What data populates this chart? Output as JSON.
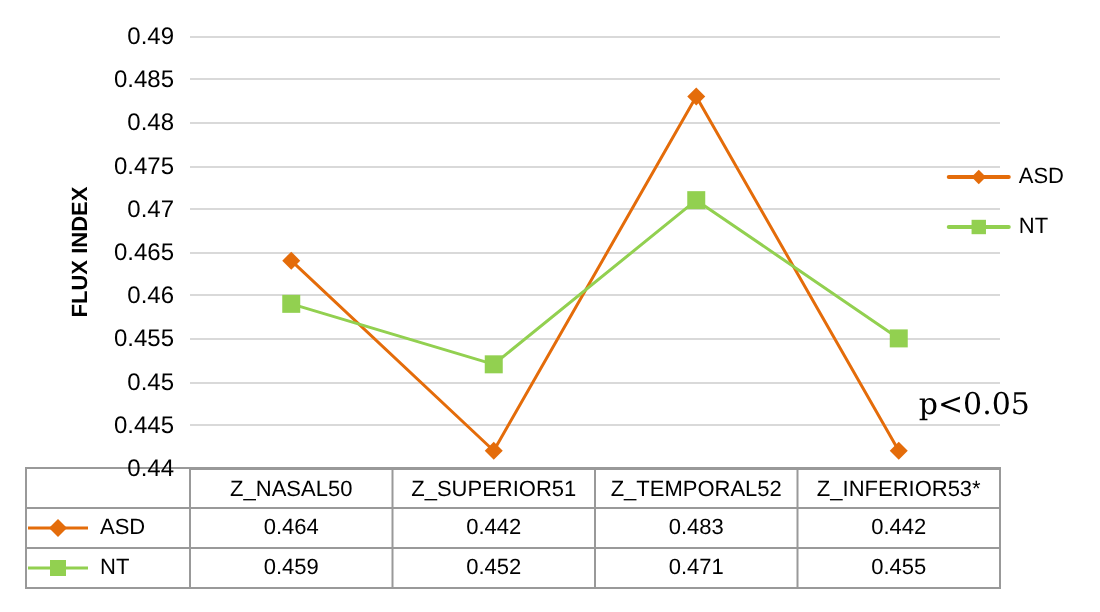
{
  "chart_data": {
    "type": "line",
    "ylabel": "FLUX INDEX",
    "categories": [
      "Z_NASAL50",
      "Z_SUPERIOR51",
      "Z_TEMPORAL52",
      "Z_INFERIOR53*"
    ],
    "series": [
      {
        "name": "ASD",
        "color": "#e46c0a",
        "marker": "diamond",
        "values": [
          0.464,
          0.442,
          0.483,
          0.442
        ]
      },
      {
        "name": "NT",
        "color": "#92d050",
        "marker": "square",
        "values": [
          0.459,
          0.452,
          0.471,
          0.455
        ]
      }
    ],
    "ylim": [
      0.44,
      0.49
    ],
    "yticks": [
      0.44,
      0.445,
      0.45,
      0.455,
      0.46,
      0.465,
      0.47,
      0.475,
      0.48,
      0.485,
      0.49
    ],
    "grid": "y",
    "legend": "right",
    "data_labels": true,
    "line_style": "solid",
    "annotations": [
      "p<0.05"
    ]
  }
}
